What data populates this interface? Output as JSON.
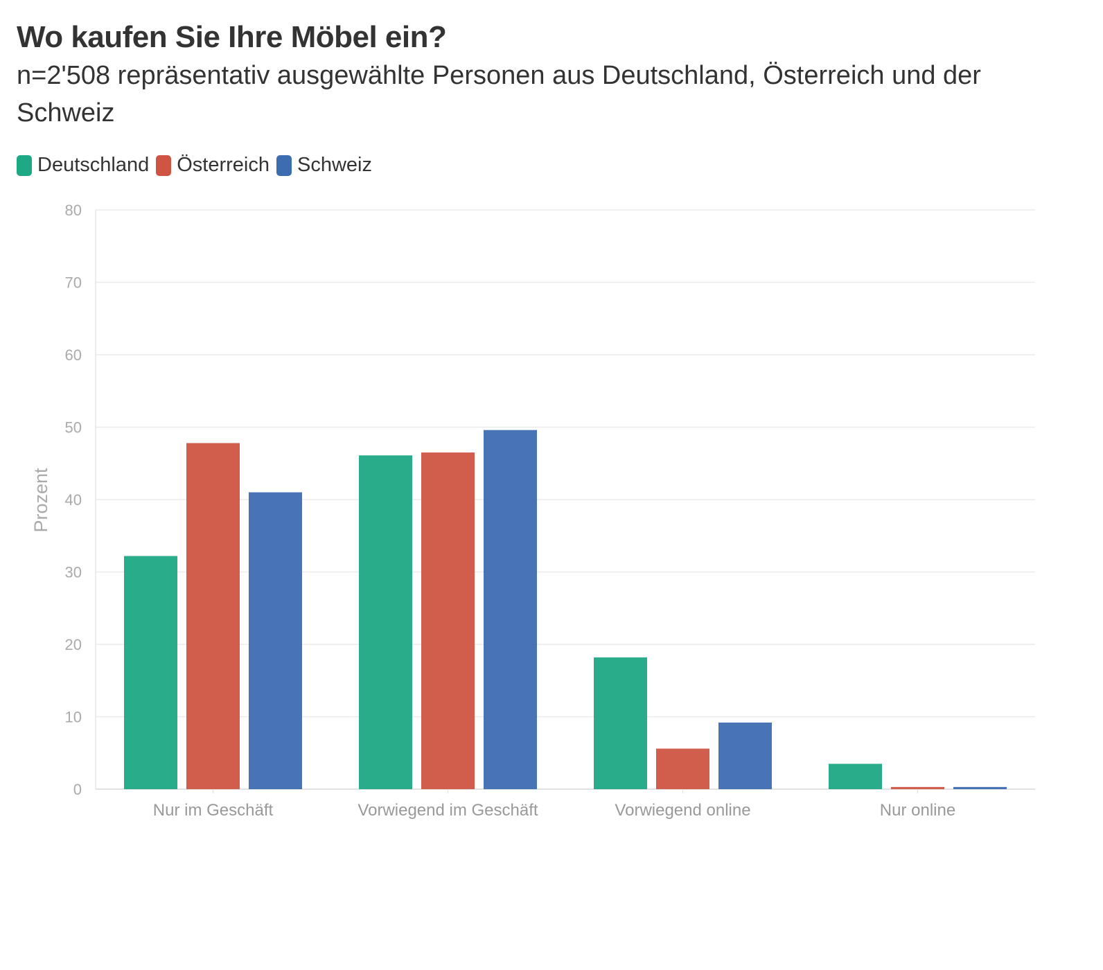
{
  "chart_data": {
    "type": "bar",
    "title": "Wo kaufen Sie Ihre Möbel ein?",
    "subtitle": "n=2'508 repräsentativ ausgewählte Personen aus Deutschland, Österreich und der Schweiz",
    "ylabel": "Prozent",
    "xlabel": "",
    "ylim": [
      0,
      80
    ],
    "yticks": [
      0,
      10,
      20,
      30,
      40,
      50,
      60,
      70,
      80
    ],
    "grid": true,
    "legend_position": "top-left",
    "categories": [
      "Nur im Geschäft",
      "Vorwiegend im Geschäft",
      "Vorwiegend online",
      "Nur online"
    ],
    "series": [
      {
        "name": "Deutschland",
        "color": "#1ea883",
        "values": [
          32.2,
          46.1,
          18.2,
          3.5
        ]
      },
      {
        "name": "Österreich",
        "color": "#cf5443",
        "values": [
          47.8,
          46.5,
          5.6,
          0.3
        ]
      },
      {
        "name": "Schweiz",
        "color": "#3e6cb0",
        "values": [
          41.0,
          49.6,
          9.2,
          0.3
        ]
      }
    ]
  }
}
